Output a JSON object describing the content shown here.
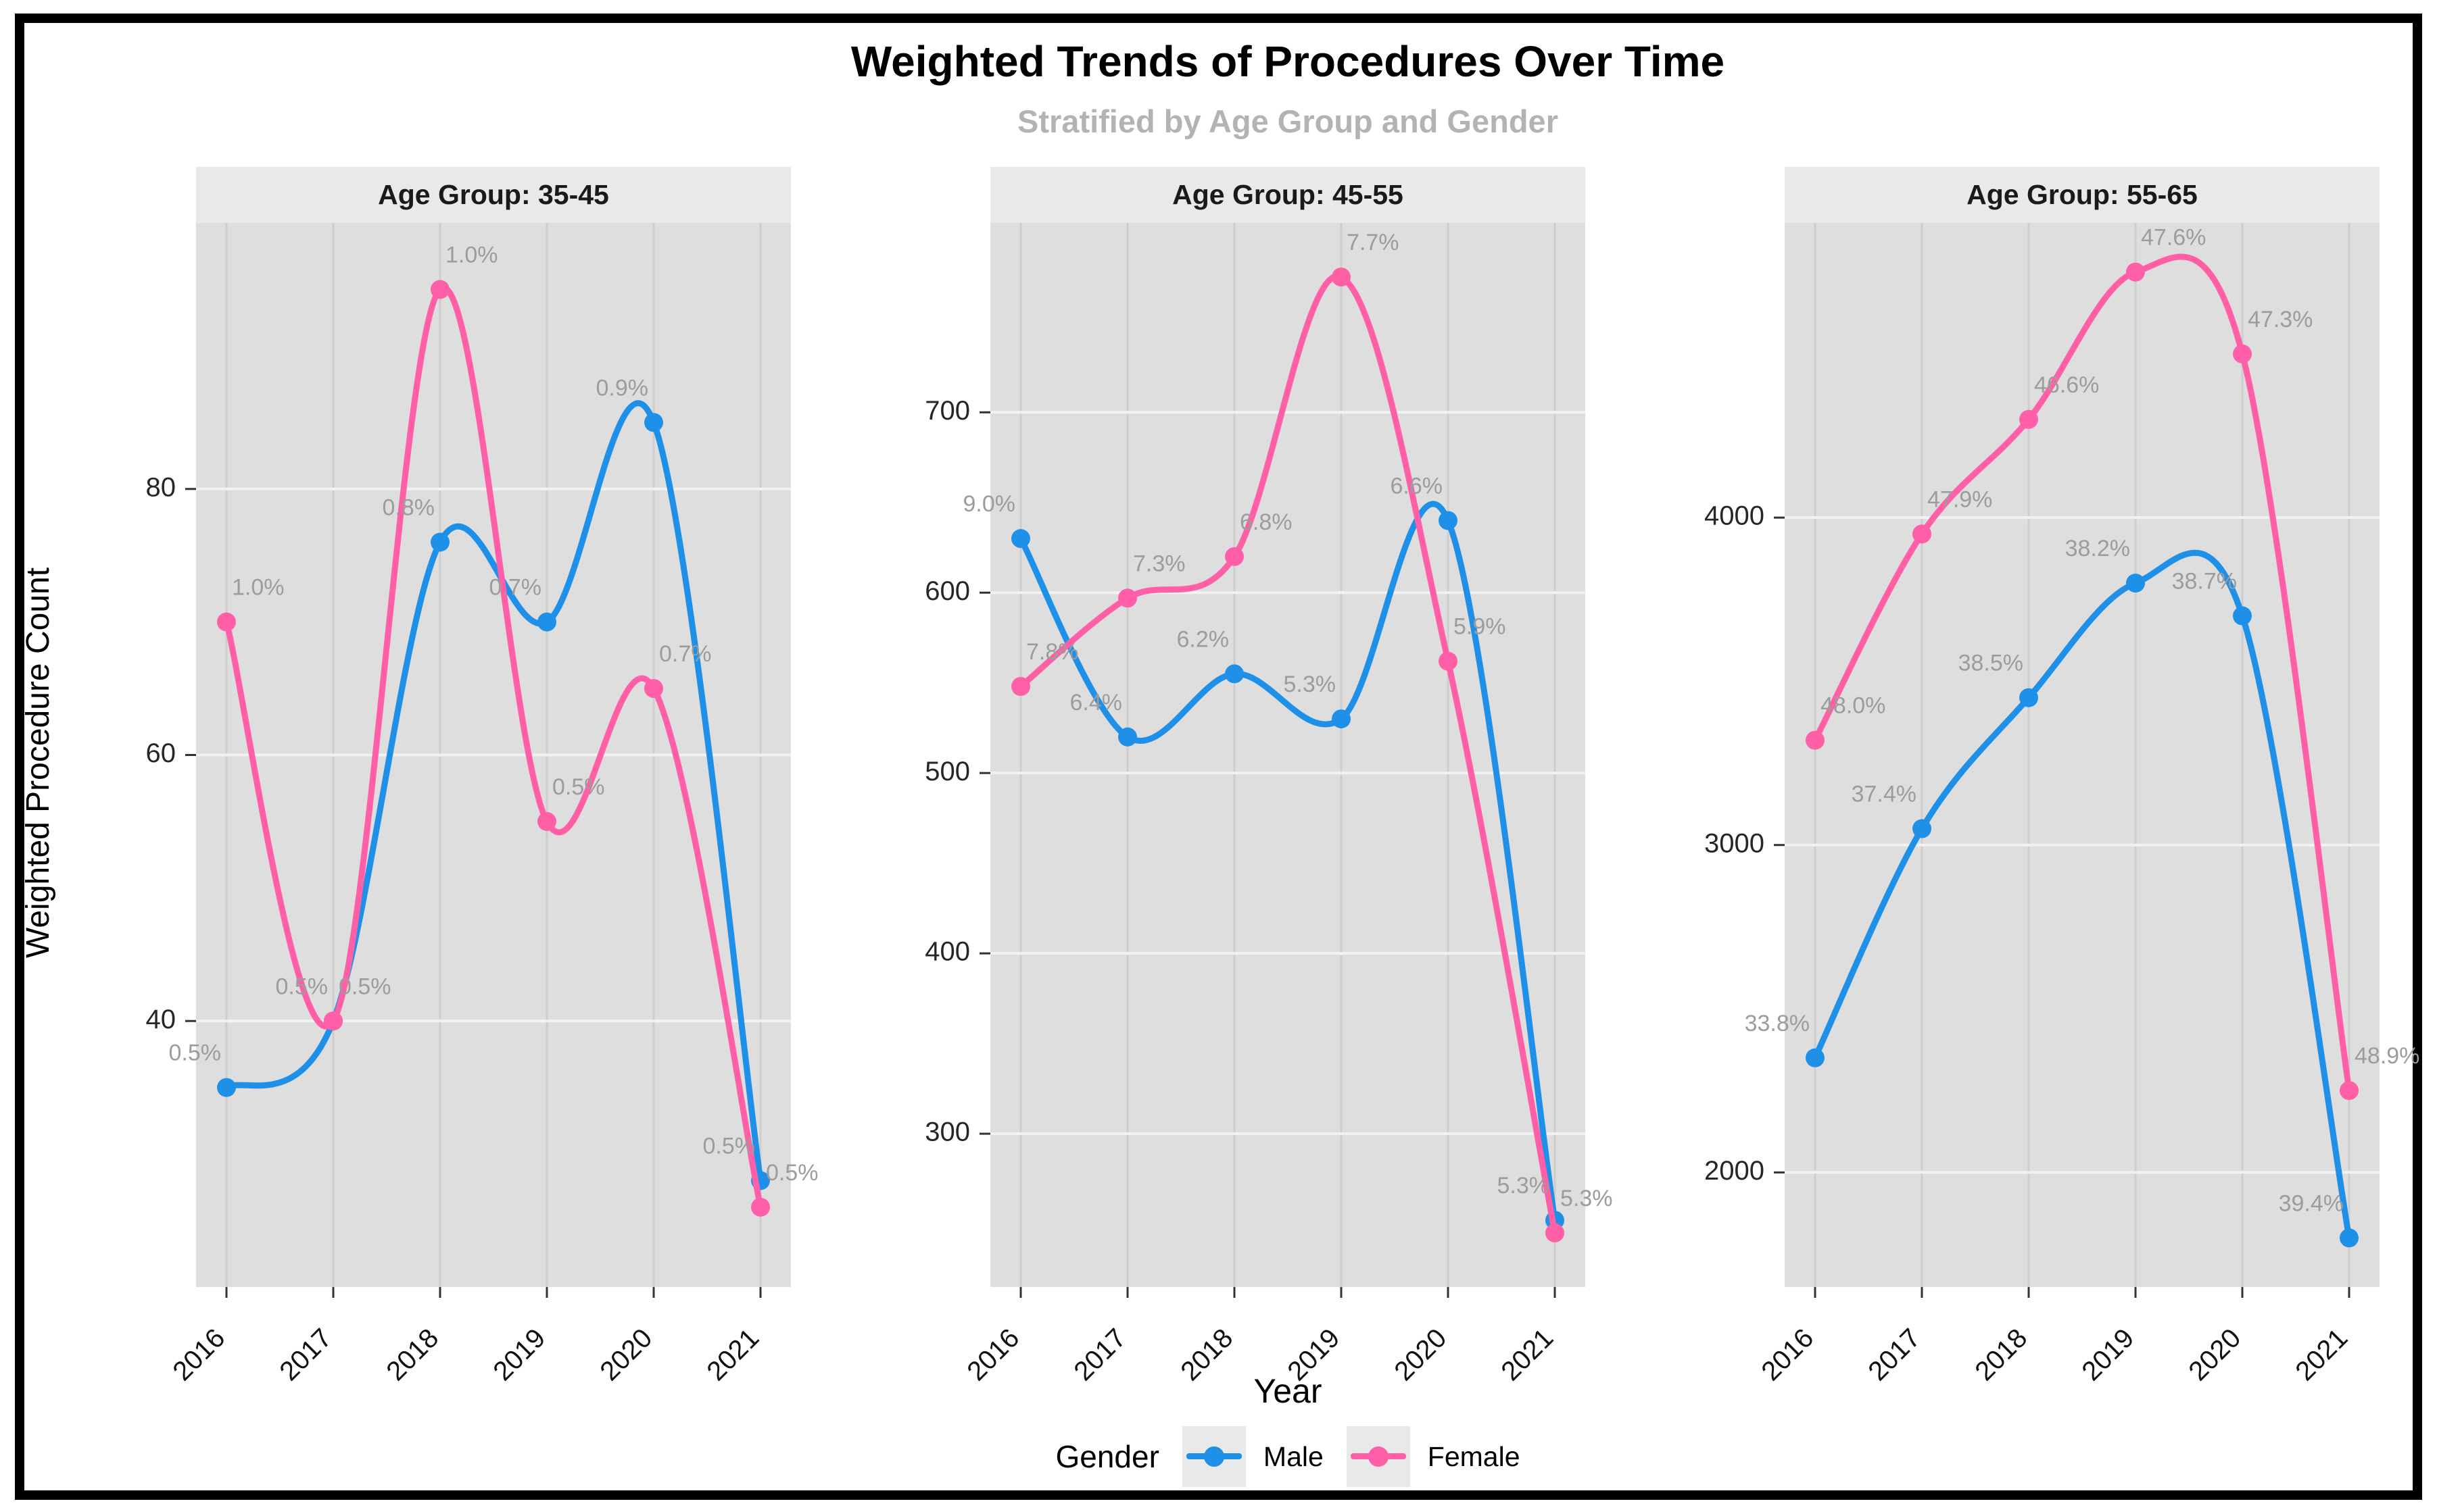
{
  "title": "Weighted Trends of Procedures Over Time",
  "subtitle": "Stratified by Age Group and Gender",
  "colors": {
    "male": "#1e90e8",
    "female": "#ff5fa7",
    "panel_background": "#dedede",
    "strip_background": "#e9e9e9",
    "h_gridline": "#f2f2f2",
    "v_gridline": "#cdcdcd",
    "point_label": "#9c9c9c",
    "tick_text": "#262626",
    "subtitle_text": "#b3b3b3"
  },
  "chart_data": {
    "type": "line",
    "title": "Weighted Trends of Procedures Over Time",
    "subtitle": "Stratified by Age Group and Gender",
    "xlabel": "Year",
    "ylabel": "Weighted Procedure Count",
    "legend_title": "Gender",
    "legend_position": "bottom",
    "grid": true,
    "x": [
      2016,
      2017,
      2018,
      2019,
      2020,
      2021
    ],
    "facets": [
      {
        "label": "Age Group: 35-45",
        "ylim": [
          20,
          100
        ],
        "yticks": [
          40,
          60,
          80
        ],
        "series": [
          {
            "name": "Male",
            "values": [
              35,
              40,
              76,
              70,
              85,
              28
            ],
            "point_labels": [
              "0.5%",
              "0.5%",
              "0.8%",
              "0.7%",
              "0.9%",
              "0.5%"
            ]
          },
          {
            "name": "Female",
            "values": [
              70,
              40,
              95,
              55,
              65,
              26
            ],
            "point_labels": [
              "1.0%",
              "0.5%",
              "1.0%",
              "0.5%",
              "0.7%",
              "0.5%"
            ]
          }
        ]
      },
      {
        "label": "Age Group: 45-55",
        "ylim": [
          215,
          805
        ],
        "yticks": [
          300,
          400,
          500,
          600,
          700
        ],
        "series": [
          {
            "name": "Male",
            "values": [
              630,
              520,
              555,
              530,
              640,
              252
            ],
            "point_labels": [
              "9.0%",
              "6.4%",
              "6.2%",
              "5.3%",
              "6.6%",
              "5.3%"
            ]
          },
          {
            "name": "Female",
            "values": [
              548,
              597,
              620,
              775,
              562,
              245
            ],
            "point_labels": [
              "7.8%",
              "7.3%",
              "6.8%",
              "7.7%",
              "5.9%",
              "5.3%"
            ]
          }
        ]
      },
      {
        "label": "Age Group: 55-65",
        "ylim": [
          1650,
          4900
        ],
        "yticks": [
          2000,
          3000,
          4000
        ],
        "series": [
          {
            "name": "Male",
            "values": [
              2350,
              3050,
              3450,
              3800,
              3700,
              1800
            ],
            "point_labels": [
              "33.8%",
              "37.4%",
              "38.5%",
              "38.2%",
              "38.7%",
              "39.4%"
            ]
          },
          {
            "name": "Female",
            "values": [
              3320,
              3950,
              4300,
              4750,
              4500,
              2250
            ],
            "point_labels": [
              "48.0%",
              "47.9%",
              "46.6%",
              "47.6%",
              "47.3%",
              "48.9%"
            ]
          }
        ]
      }
    ]
  },
  "legend": {
    "title": "Gender",
    "items": [
      {
        "label": "Male",
        "color_key": "male"
      },
      {
        "label": "Female",
        "color_key": "female"
      }
    ]
  },
  "axes": {
    "x_title": "Year",
    "y_title": "Weighted Procedure Count"
  }
}
